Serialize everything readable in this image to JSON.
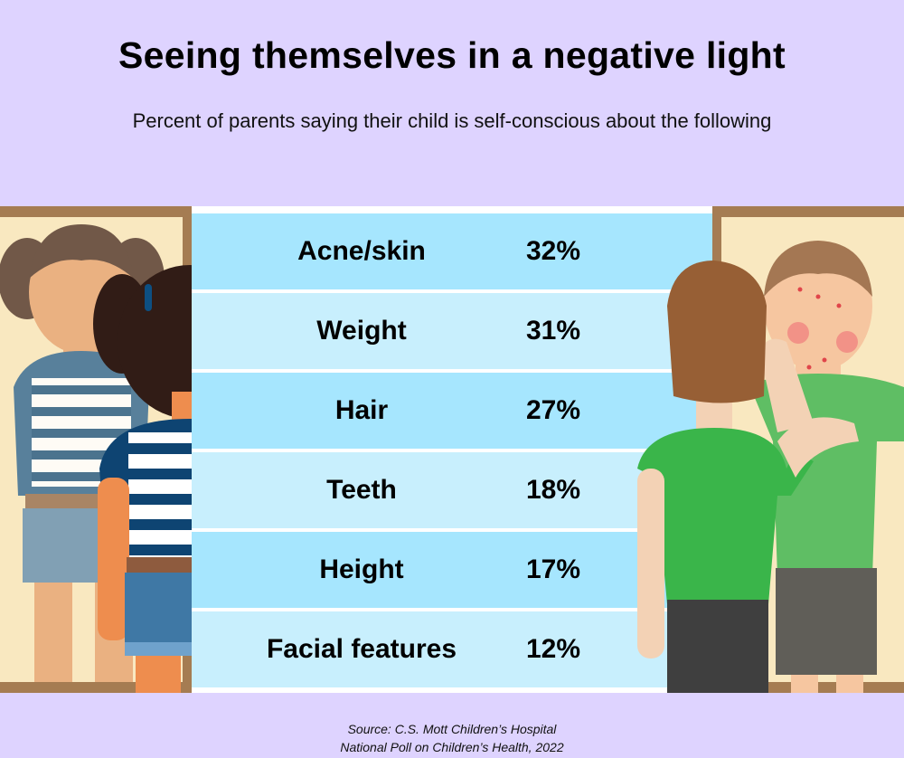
{
  "title": "Seeing themselves in a negative light",
  "subtitle": "Percent of parents saying their child is self-conscious about the following",
  "chart_data": {
    "type": "table",
    "title": "Seeing themselves in a negative light",
    "subtitle": "Percent of parents saying their child is self-conscious about the following",
    "categories": [
      "Acne/skin",
      "Weight",
      "Hair",
      "Teeth",
      "Height",
      "Facial features"
    ],
    "values": [
      32,
      31,
      27,
      18,
      17,
      12
    ],
    "value_labels": [
      "32%",
      "31%",
      "27%",
      "18%",
      "17%",
      "12%"
    ],
    "row_colors": [
      "#a6e6fe",
      "#c8effd"
    ]
  },
  "source": {
    "line1": "Source: C.S. Mott Children’s Hospital",
    "line2": "National Poll on Children’s Health, 2022"
  },
  "colors": {
    "background": "#ded3ff",
    "mirror_frame": "#a57c52",
    "mirror_glass": "#f9e8c0"
  }
}
